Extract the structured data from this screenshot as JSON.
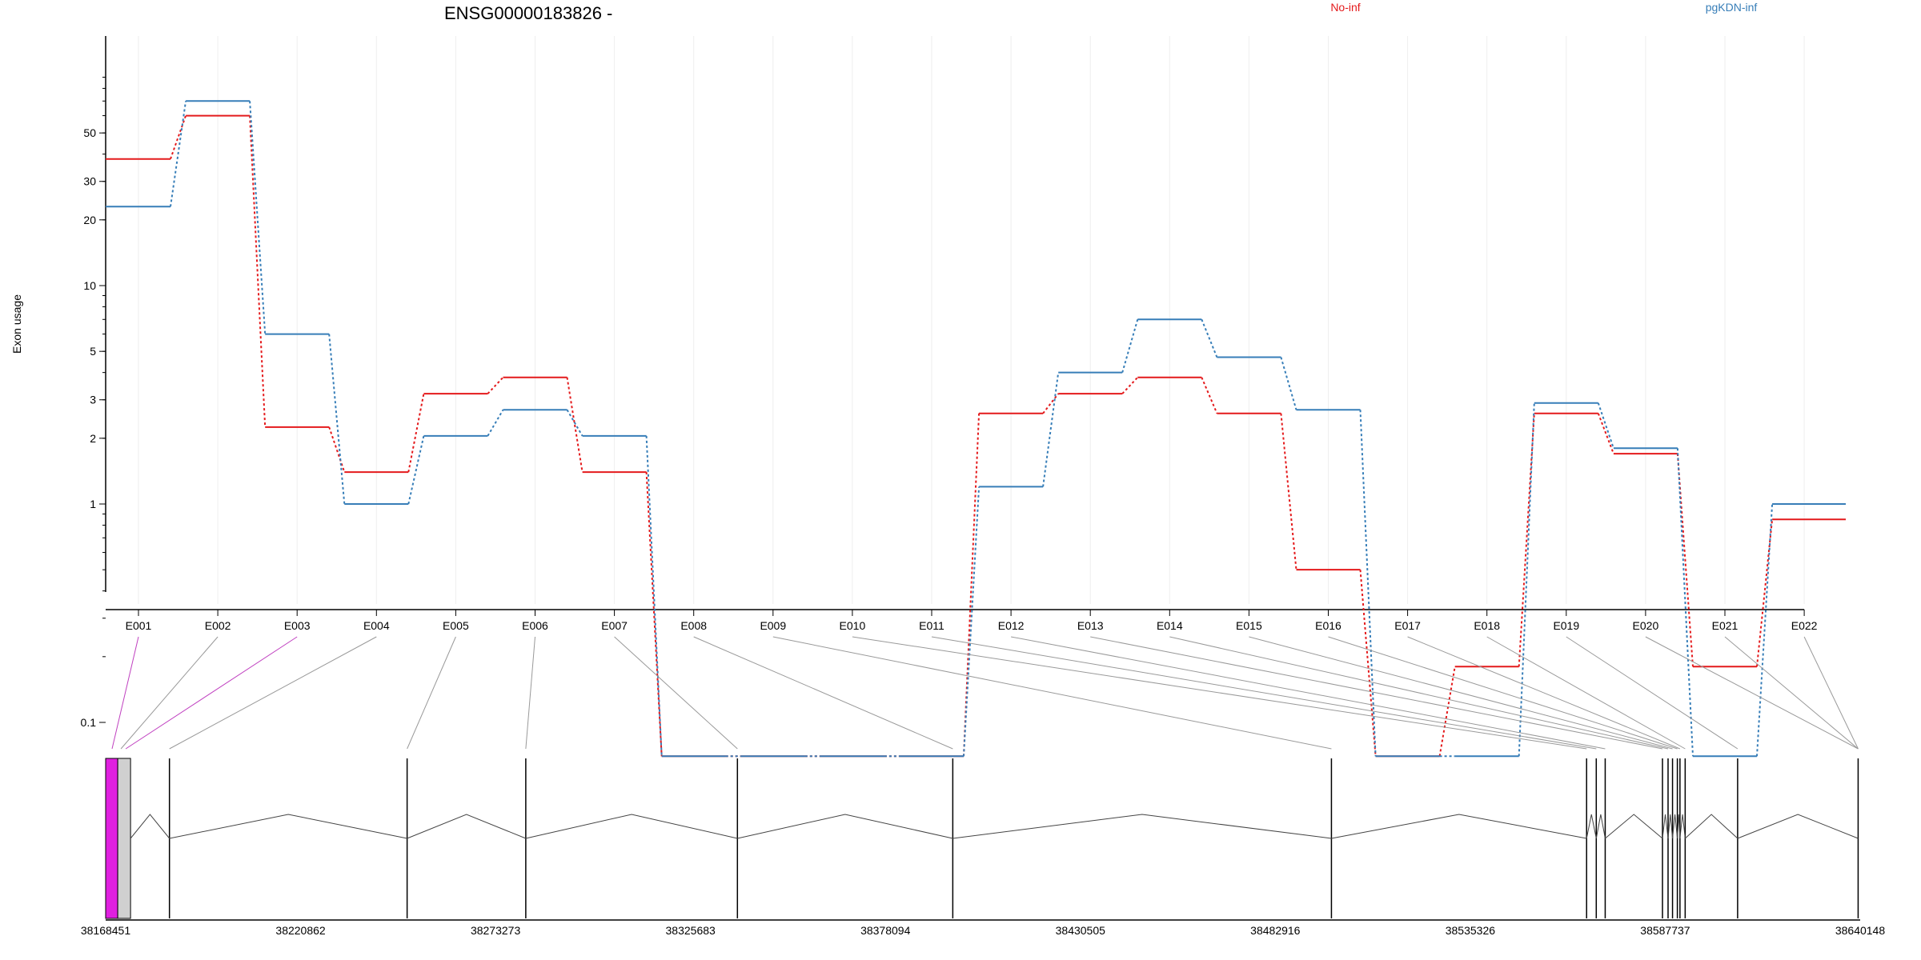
{
  "chart_data": {
    "type": "line",
    "title": "ENSG00000183826 -",
    "xlabel": "",
    "ylabel": "Exon usage",
    "y_scale": "log",
    "y_ticks": [
      0.1,
      1,
      2,
      3,
      5,
      10,
      20,
      30,
      50
    ],
    "y_tick_labels": [
      "0.1",
      "1",
      "2",
      "3",
      "5",
      "10",
      "20",
      "30",
      "50"
    ],
    "legend_placement": "top-right",
    "grid": "vertical",
    "categories": [
      "E001",
      "E002",
      "E003",
      "E004",
      "E005",
      "E006",
      "E007",
      "E008",
      "E009",
      "E010",
      "E011",
      "E012",
      "E013",
      "E014",
      "E015",
      "E016",
      "E017",
      "E018",
      "E019",
      "E020",
      "E021",
      "E022"
    ],
    "series": [
      {
        "name": "No-inf",
        "color": "#e41a1c",
        "values": [
          38,
          60,
          2.25,
          1.4,
          3.2,
          3.8,
          1.4,
          0.07,
          0.07,
          0.07,
          0.07,
          2.6,
          3.2,
          3.8,
          2.6,
          0.5,
          0.07,
          0.18,
          2.6,
          1.7,
          0.18,
          0.85
        ]
      },
      {
        "name": "pgKDN-inf",
        "color": "#377eb8",
        "values": [
          23,
          70,
          6.0,
          1.0,
          2.05,
          2.7,
          2.05,
          0.07,
          0.07,
          0.07,
          0.07,
          1.2,
          4.0,
          7.0,
          4.7,
          2.7,
          0.07,
          0.07,
          2.9,
          1.8,
          0.07,
          1.0
        ]
      }
    ]
  },
  "gene_model": {
    "coordinate_labels": [
      "38168451",
      "38220862",
      "38273273",
      "38325683",
      "38378094",
      "38430505",
      "38482916",
      "38535326",
      "38587737",
      "38640148"
    ],
    "coordinate_range": [
      38168451,
      38640148
    ],
    "exon_positions": [
      38168451,
      38171700,
      38185600,
      38249500,
      38281400,
      38338300,
      38396200,
      38498000,
      38566600,
      38569200,
      38571600,
      38587000,
      38588500,
      38589700,
      38591000,
      38591700,
      38593100,
      38607200,
      38639600
    ],
    "highlight_exon": {
      "start": 38168451,
      "end": 38171700,
      "color": "#e020e0"
    },
    "exon_color": "#d0d0d0",
    "link_color_highlight": "#c040c0",
    "link_color": "#999999"
  }
}
